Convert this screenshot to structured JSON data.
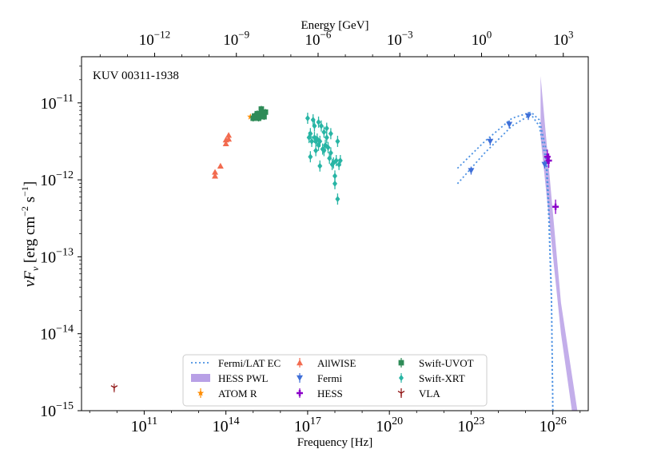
{
  "chart_data": {
    "type": "scatter",
    "annotation": "KUV 00311-1938",
    "xlabel": "Frequency [Hz]",
    "ylabel_parts": {
      "base": "νF",
      "sub": "ν",
      "unit_open": " [erg cm",
      "exp1": "−2",
      "mid": " s",
      "exp2": "−1",
      "close": "]"
    },
    "top_xlabel": "Energy [GeV]",
    "xscale": "log",
    "yscale": "log",
    "xlim_log10": [
      8.7,
      27.3
    ],
    "ylim_log10": [
      -15,
      -10.4
    ],
    "grid": false,
    "x_ticks": [
      {
        "log": 11,
        "base": "10",
        "exp": "11"
      },
      {
        "log": 14,
        "base": "10",
        "exp": "14"
      },
      {
        "log": 17,
        "base": "10",
        "exp": "17"
      },
      {
        "log": 20,
        "base": "10",
        "exp": "20"
      },
      {
        "log": 23,
        "base": "10",
        "exp": "23"
      },
      {
        "log": 26,
        "base": "10",
        "exp": "26"
      }
    ],
    "y_ticks": [
      {
        "log": -11,
        "base": "10",
        "exp": "−11"
      },
      {
        "log": -12,
        "base": "10",
        "exp": "−12"
      },
      {
        "log": -13,
        "base": "10",
        "exp": "−13"
      },
      {
        "log": -14,
        "base": "10",
        "exp": "−14"
      },
      {
        "log": -15,
        "base": "10",
        "exp": "−15"
      }
    ],
    "top_ticks": [
      {
        "log": -12,
        "base": "10",
        "exp": "−12"
      },
      {
        "log": -9,
        "base": "10",
        "exp": "−9"
      },
      {
        "log": -6,
        "base": "10",
        "exp": "−6"
      },
      {
        "log": -3,
        "base": "10",
        "exp": "−3"
      },
      {
        "log": 0,
        "base": "10",
        "exp": "0"
      },
      {
        "log": 3,
        "base": "10",
        "exp": "3"
      }
    ],
    "legend_position": "lower-center",
    "legend": [
      {
        "label": "Fermi/LAT EC",
        "key": "fermi_ec",
        "kind": "dotted-line",
        "color": "#4a90e2"
      },
      {
        "label": "AllWISE",
        "key": "allwise",
        "kind": "triangle-up",
        "color": "#f26b4f"
      },
      {
        "label": "Swift-UVOT",
        "key": "uvot",
        "kind": "square",
        "color": "#2e8b57"
      },
      {
        "label": "HESS PWL",
        "key": "hess_pwl",
        "kind": "band",
        "color": "#b8a0e6"
      },
      {
        "label": "Fermi",
        "key": "fermi",
        "kind": "triangle-down",
        "color": "#3f6fd8"
      },
      {
        "label": "Swift-XRT",
        "key": "xrt",
        "kind": "diamond",
        "color": "#28b5a5"
      },
      {
        "label": "ATOM R",
        "key": "atom",
        "kind": "star",
        "color": "#ff8c00"
      },
      {
        "label": "HESS",
        "key": "hess",
        "kind": "plus",
        "color": "#8b00c9"
      },
      {
        "label": "VLA",
        "key": "vla",
        "kind": "tri",
        "color": "#8b0a0a"
      }
    ],
    "series": {
      "vla": {
        "points": [
          [
            9.9,
            -14.7
          ]
        ]
      },
      "allwise": {
        "points": [
          [
            13.6,
            -11.95
          ],
          [
            13.6,
            -11.9
          ],
          [
            13.8,
            -11.82
          ],
          [
            14.0,
            -11.53
          ],
          [
            14.0,
            -11.48
          ],
          [
            14.1,
            -11.47
          ],
          [
            14.1,
            -11.42
          ]
        ]
      },
      "atom": {
        "points": [
          [
            14.9,
            -11.18
          ]
        ]
      },
      "uvot": {
        "points": [
          [
            15.0,
            -11.2
          ],
          [
            15.05,
            -11.17
          ],
          [
            15.1,
            -11.18
          ],
          [
            15.15,
            -11.14
          ],
          [
            15.2,
            -11.2
          ],
          [
            15.25,
            -11.15
          ],
          [
            15.3,
            -11.17
          ],
          [
            15.35,
            -11.13
          ],
          [
            15.4,
            -11.18
          ],
          [
            15.45,
            -11.12
          ],
          [
            15.3,
            -11.08
          ]
        ]
      },
      "xrt": {
        "points": [
          [
            17.0,
            -11.2
          ],
          [
            17.05,
            -11.45
          ],
          [
            17.1,
            -11.4
          ],
          [
            17.15,
            -11.5
          ],
          [
            17.2,
            -11.22
          ],
          [
            17.25,
            -11.45
          ],
          [
            17.3,
            -11.5
          ],
          [
            17.35,
            -11.47
          ],
          [
            17.4,
            -11.55
          ],
          [
            17.45,
            -11.5
          ],
          [
            17.5,
            -11.3
          ],
          [
            17.55,
            -11.6
          ],
          [
            17.6,
            -11.62
          ],
          [
            17.65,
            -11.55
          ],
          [
            17.7,
            -11.45
          ],
          [
            17.75,
            -11.58
          ],
          [
            17.8,
            -11.72
          ],
          [
            17.85,
            -11.65
          ],
          [
            17.9,
            -11.8
          ],
          [
            17.95,
            -11.78
          ],
          [
            18.0,
            -11.95
          ],
          [
            18.05,
            -11.75
          ],
          [
            18.1,
            -11.5
          ],
          [
            18.15,
            -11.8
          ],
          [
            18.2,
            -11.75
          ],
          [
            18.1,
            -12.25
          ],
          [
            17.4,
            -11.25
          ],
          [
            17.7,
            -11.33
          ],
          [
            17.1,
            -11.7
          ],
          [
            17.45,
            -11.82
          ],
          [
            17.85,
            -11.4
          ],
          [
            18.0,
            -12.05
          ],
          [
            17.3,
            -11.62
          ],
          [
            17.6,
            -11.38
          ],
          [
            17.25,
            -11.3
          ]
        ]
      },
      "fermi": {
        "points": [
          [
            23.0,
            -11.88
          ],
          [
            23.7,
            -11.5
          ],
          [
            24.4,
            -11.28
          ],
          [
            25.1,
            -11.17
          ],
          [
            25.7,
            -11.8
          ]
        ]
      },
      "hess": {
        "points": [
          [
            25.8,
            -11.7
          ],
          [
            25.85,
            -11.75
          ],
          [
            26.1,
            -12.35
          ]
        ]
      },
      "fermi_ec_upper": [
        [
          22.5,
          -11.85
        ],
        [
          23.5,
          -11.5
        ],
        [
          24.5,
          -11.2
        ],
        [
          25.2,
          -11.12
        ],
        [
          25.5,
          -11.22
        ],
        [
          25.75,
          -11.6
        ],
        [
          25.85,
          -12.3
        ],
        [
          25.95,
          -13.5
        ],
        [
          26.0,
          -15.0
        ]
      ],
      "fermi_ec_lower": [
        [
          22.5,
          -12.05
        ],
        [
          23.5,
          -11.65
        ],
        [
          24.5,
          -11.3
        ],
        [
          25.2,
          -11.15
        ],
        [
          25.5,
          -11.3
        ],
        [
          25.75,
          -11.75
        ],
        [
          25.85,
          -12.5
        ],
        [
          25.95,
          -13.6
        ],
        [
          26.0,
          -15.0
        ]
      ],
      "hess_pwl": {
        "upper": [
          [
            25.55,
            -10.65
          ],
          [
            26.3,
            -13.6
          ],
          [
            26.9,
            -15.0
          ]
        ],
        "lower": [
          [
            25.55,
            -11.45
          ],
          [
            26.3,
            -14.0
          ],
          [
            26.7,
            -15.0
          ]
        ]
      }
    }
  }
}
